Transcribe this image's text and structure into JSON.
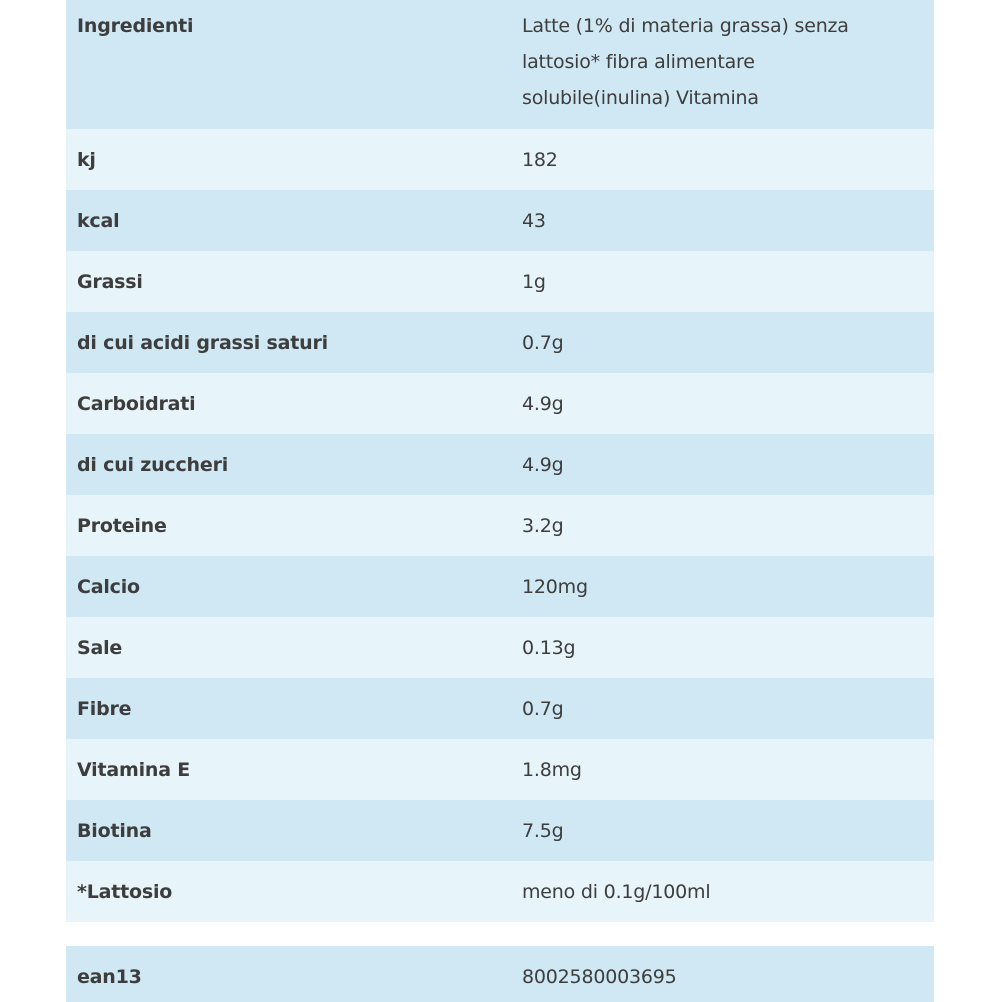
{
  "ingredients": {
    "label": "Ingredienti",
    "value_lines": [
      "Latte (1% di materia grassa) senza",
      "lattosio* fibra alimentare",
      "solubile(inulina) Vitamina"
    ]
  },
  "nutrition_rows": [
    {
      "label": "kj",
      "value": "182"
    },
    {
      "label": "kcal",
      "value": "43"
    },
    {
      "label": "Grassi",
      "value": "1g"
    },
    {
      "label": "di cui acidi grassi saturi",
      "value": "0.7g"
    },
    {
      "label": "Carboidrati",
      "value": "4.9g"
    },
    {
      "label": "di cui zuccheri",
      "value": "4.9g"
    },
    {
      "label": "Proteine",
      "value": "3.2g"
    },
    {
      "label": "Calcio",
      "value": "120mg"
    },
    {
      "label": "Sale",
      "value": "0.13g"
    },
    {
      "label": "Fibre",
      "value": "0.7g"
    },
    {
      "label": "Vitamina E",
      "value": "1.8mg"
    },
    {
      "label": "Biotina",
      "value": "7.5g"
    },
    {
      "label": "*Lattosio",
      "value": "meno di 0.1g/100ml"
    }
  ],
  "ean": {
    "label": "ean13",
    "value": "8002580003695"
  },
  "colors": {
    "row_dark": "#cfe8f3",
    "row_light": "#e7f4f9",
    "text": "#3d3d3d"
  }
}
